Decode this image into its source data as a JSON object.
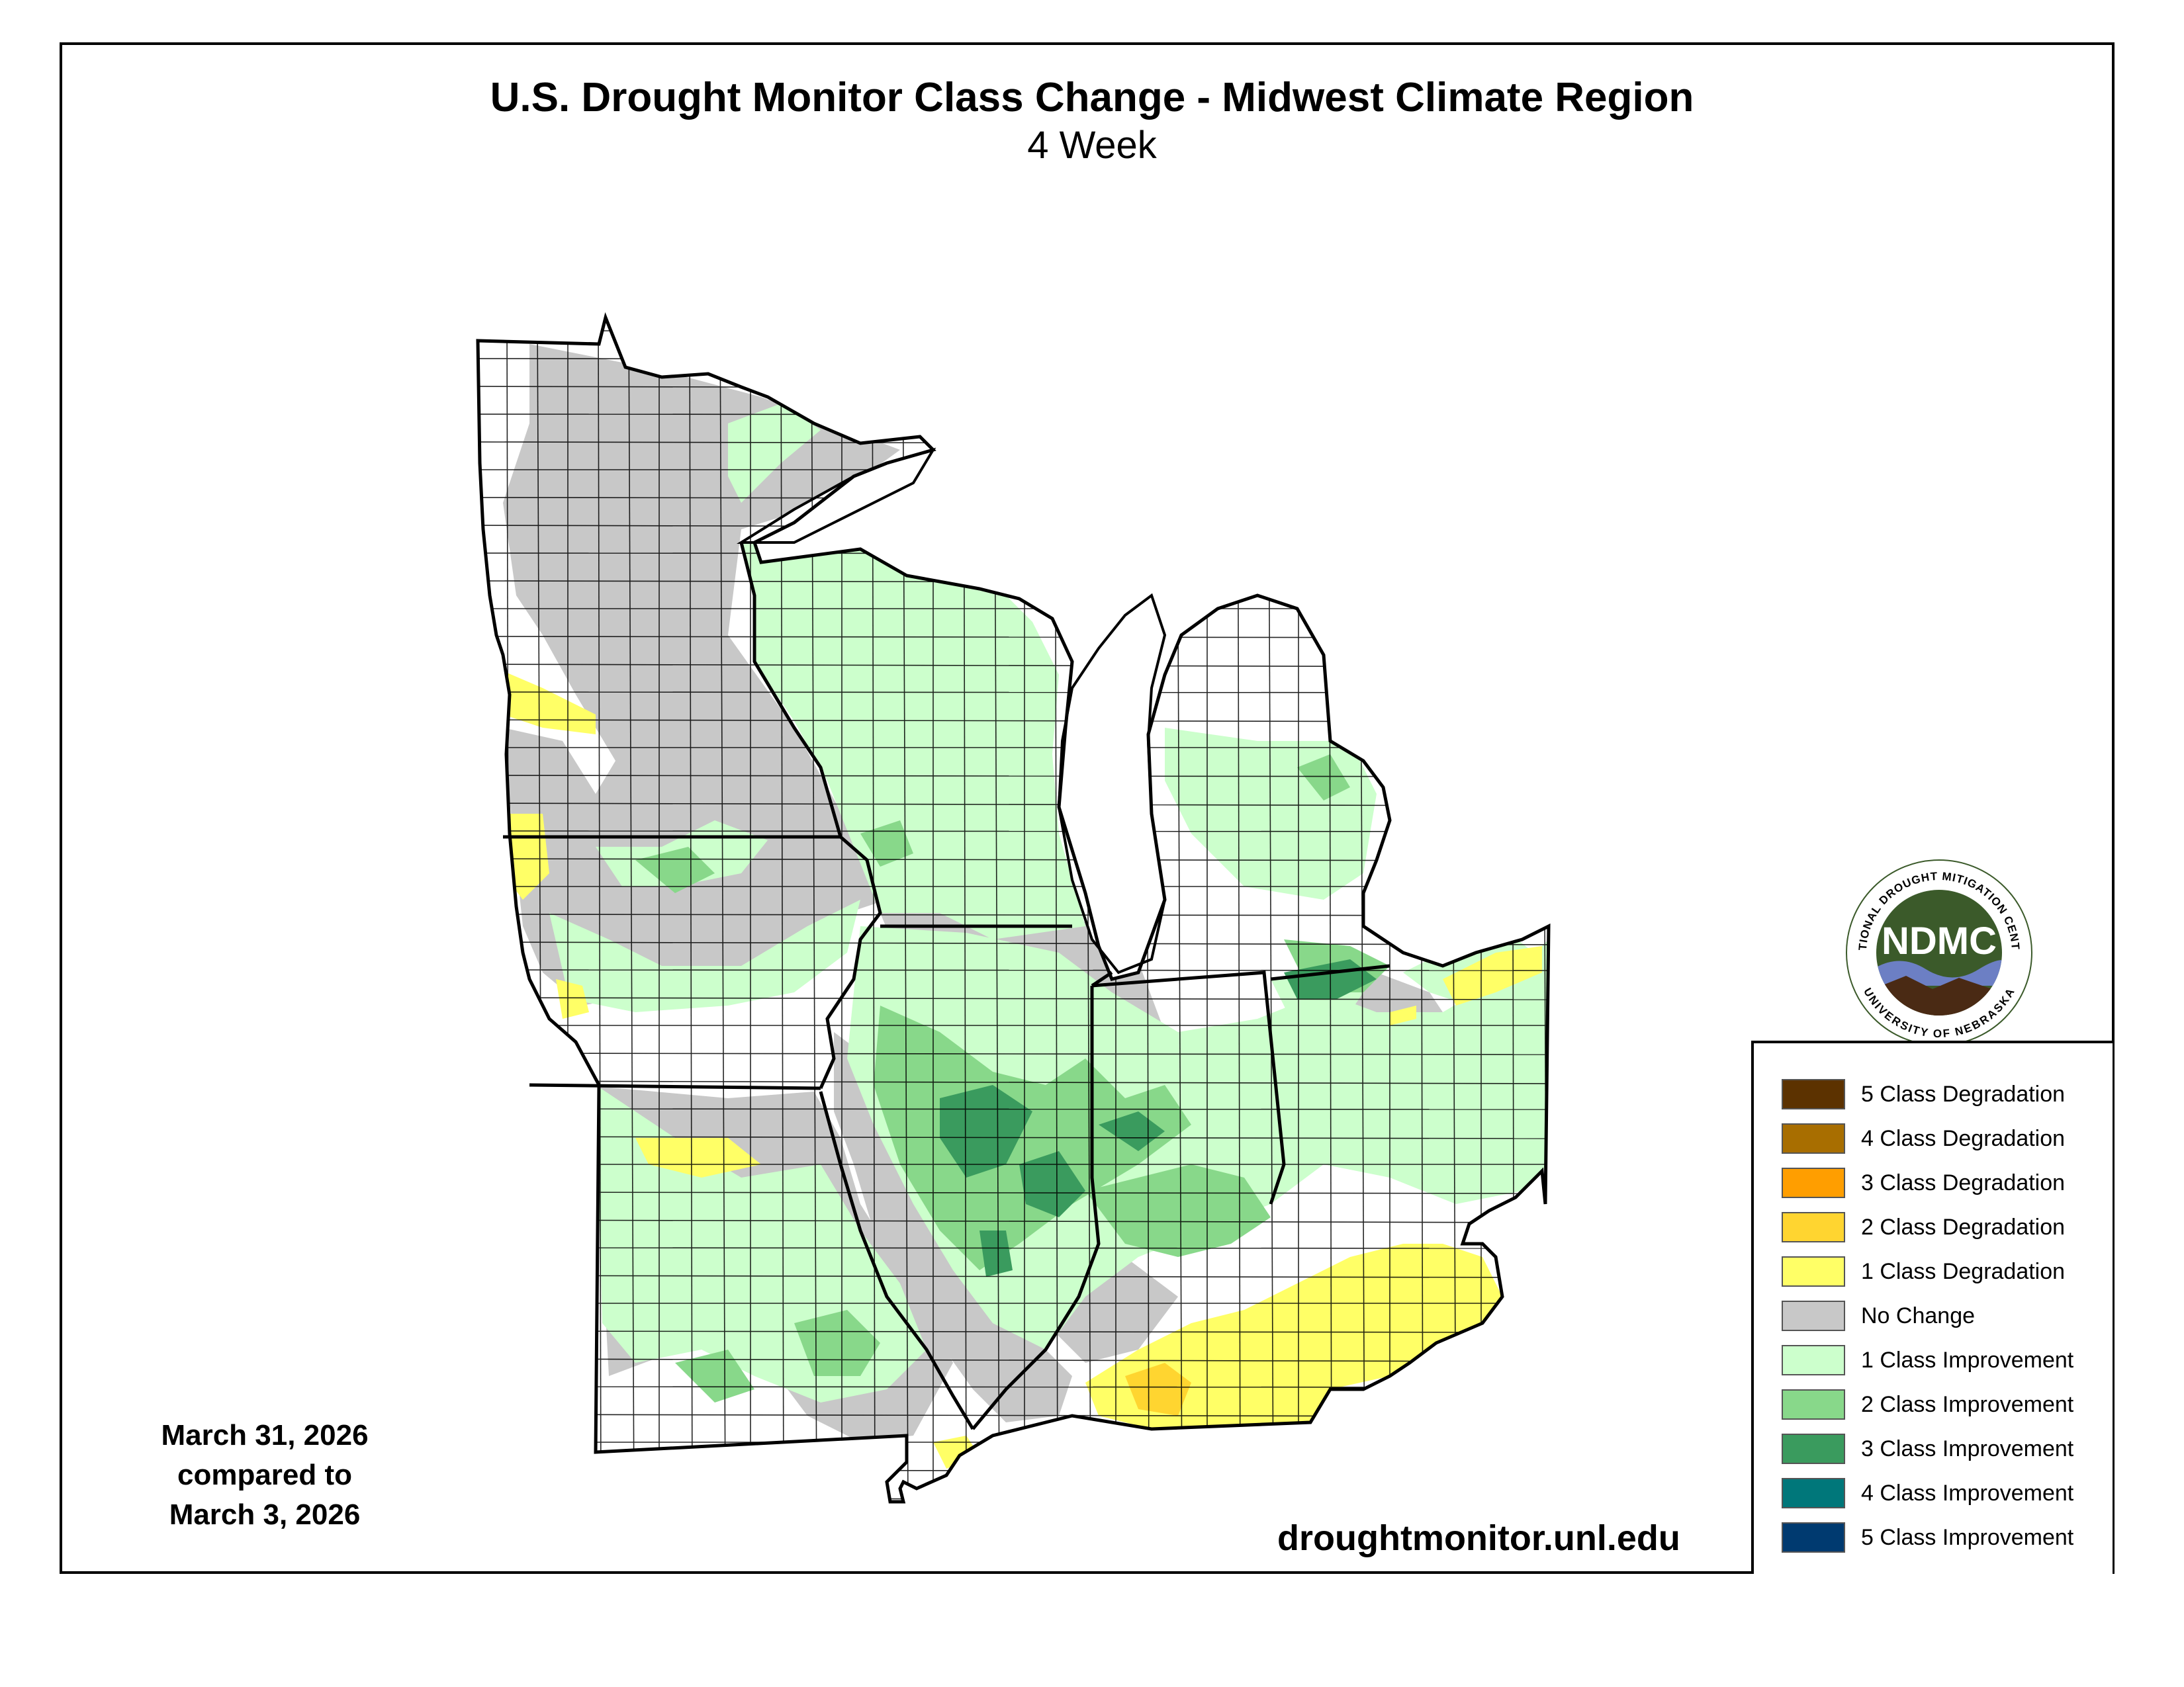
{
  "title": "U.S. Drought Monitor Class Change - Midwest Climate Region",
  "subtitle": "4 Week",
  "dates": {
    "line1": "March 31, 2026",
    "line2": "compared to",
    "line3": "March 3, 2026"
  },
  "website": "droughtmonitor.unl.edu",
  "logo": {
    "abbr": "NDMC",
    "ring_top": "NATIONAL DROUGHT MITIGATION CENTER",
    "ring_bottom": "UNIVERSITY OF NEBRASKA"
  },
  "legend": [
    {
      "label": "5 Class Degradation",
      "color": "#5c3200"
    },
    {
      "label": "4 Class Degradation",
      "color": "#a86e00"
    },
    {
      "label": "3 Class Degradation",
      "color": "#ff9e00"
    },
    {
      "label": "2 Class Degradation",
      "color": "#ffd530"
    },
    {
      "label": "1 Class Degradation",
      "color": "#ffff66"
    },
    {
      "label": "No Change",
      "color": "#c8c8c8"
    },
    {
      "label": "1 Class Improvement",
      "color": "#ccffcc"
    },
    {
      "label": "2 Class Improvement",
      "color": "#88d88a"
    },
    {
      "label": "3 Class Improvement",
      "color": "#3a9b5e"
    },
    {
      "label": "4 Class Improvement",
      "color": "#00777a"
    },
    {
      "label": "5 Class Improvement",
      "color": "#003a70"
    }
  ],
  "colors": {
    "no_change": "#c8c8c8",
    "improve1": "#ccffcc",
    "improve2": "#88d88a",
    "improve3": "#3a9b5e",
    "degrade1": "#ffff66",
    "degrade2": "#ffd530",
    "lake": "#ffffff",
    "logo_green": "#3b5a2a",
    "logo_brown": "#4a2a14",
    "logo_blue": "#6c7fc4"
  }
}
